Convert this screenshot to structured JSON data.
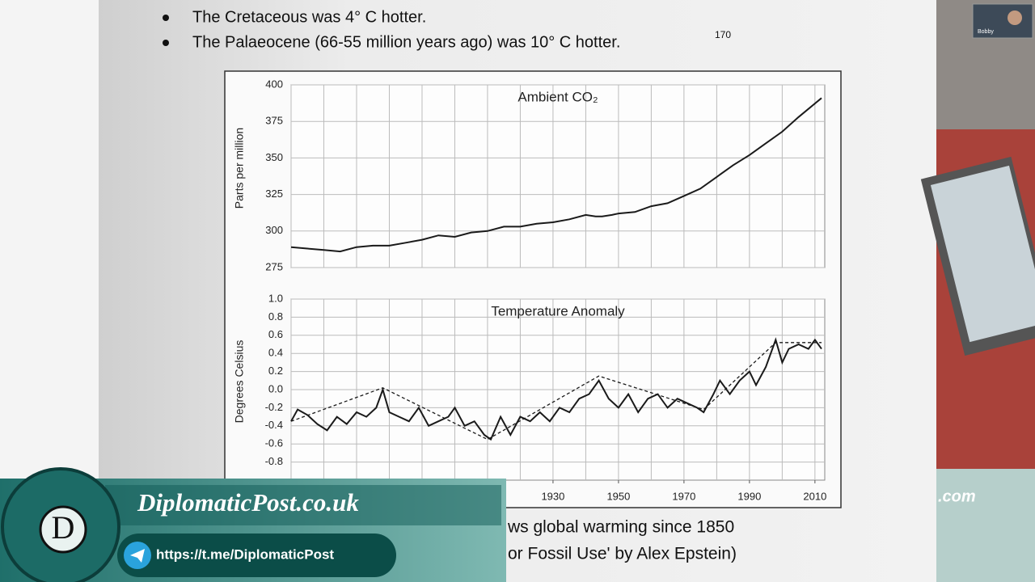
{
  "document": {
    "bullets": [
      "The Cretaceous was 4° C hotter.",
      "The Palaeocene (66-55 million years ago) was 10° C hotter."
    ],
    "footnote": "170",
    "caption": [
      "ws global warming since 1850",
      "or Fossil Use' by Alex Epstein)"
    ]
  },
  "chart_data": [
    {
      "type": "line",
      "title": "Ambient CO₂",
      "y_label": "Parts per million",
      "xlim": [
        1850,
        2013
      ],
      "ylim": [
        275,
        400
      ],
      "yticks": [
        275,
        300,
        325,
        350,
        375,
        400
      ],
      "grid": true,
      "series": [
        {
          "color": "#1a1a1a",
          "dash": false,
          "x": [
            1850,
            1855,
            1860,
            1865,
            1870,
            1875,
            1880,
            1885,
            1890,
            1895,
            1900,
            1905,
            1910,
            1915,
            1920,
            1925,
            1930,
            1935,
            1940,
            1943,
            1945,
            1948,
            1950,
            1955,
            1960,
            1965,
            1970,
            1975,
            1980,
            1985,
            1990,
            1995,
            2000,
            2005,
            2012
          ],
          "values": [
            289,
            288,
            287,
            286,
            289,
            290,
            290,
            292,
            294,
            297,
            296,
            299,
            300,
            303,
            303,
            305,
            306,
            308,
            311,
            310,
            310,
            311,
            312,
            313,
            317,
            319,
            324,
            329,
            337,
            345,
            352,
            360,
            368,
            378,
            391
          ]
        }
      ]
    },
    {
      "type": "line",
      "title": "Temperature Anomaly",
      "y_label": "Degrees Celsius",
      "xlim": [
        1850,
        2013
      ],
      "ylim": [
        -1.0,
        1.0
      ],
      "yticks": [
        -0.8,
        -0.6,
        -0.4,
        -0.2,
        {
          "value": 0,
          "label": "0.0"
        },
        0.2,
        0.4,
        0.6,
        0.8,
        {
          "value": 1,
          "label": "1.0"
        }
      ],
      "xticks": [
        1930,
        1950,
        1970,
        1990,
        2010
      ],
      "grid": true,
      "series": [
        {
          "color": "#1a1a1a",
          "dash": false,
          "x": [
            1850,
            1852,
            1855,
            1858,
            1861,
            1864,
            1867,
            1870,
            1873,
            1876,
            1878,
            1880,
            1883,
            1886,
            1889,
            1892,
            1895,
            1898,
            1900,
            1903,
            1906,
            1909,
            1911,
            1914,
            1917,
            1920,
            1923,
            1926,
            1929,
            1932,
            1935,
            1938,
            1941,
            1944,
            1947,
            1950,
            1953,
            1956,
            1959,
            1962,
            1965,
            1968,
            1971,
            1974,
            1976,
            1979,
            1981,
            1984,
            1987,
            1990,
            1992,
            1995,
            1998,
            2000,
            2002,
            2005,
            2008,
            2010,
            2012
          ],
          "values": [
            -0.35,
            -0.22,
            -0.28,
            -0.38,
            -0.45,
            -0.3,
            -0.38,
            -0.25,
            -0.3,
            -0.2,
            0.0,
            -0.25,
            -0.3,
            -0.35,
            -0.2,
            -0.4,
            -0.35,
            -0.3,
            -0.2,
            -0.4,
            -0.35,
            -0.5,
            -0.55,
            -0.3,
            -0.5,
            -0.3,
            -0.35,
            -0.25,
            -0.35,
            -0.2,
            -0.25,
            -0.1,
            -0.05,
            0.1,
            -0.1,
            -0.2,
            -0.05,
            -0.25,
            -0.1,
            -0.05,
            -0.2,
            -0.1,
            -0.15,
            -0.2,
            -0.25,
            -0.05,
            0.1,
            -0.05,
            0.1,
            0.2,
            0.05,
            0.25,
            0.55,
            0.3,
            0.45,
            0.5,
            0.45,
            0.55,
            0.45
          ]
        },
        {
          "color": "#1a1a1a",
          "dash": true,
          "x": [
            1850,
            1878,
            1910,
            1944,
            1976,
            1998,
            2012
          ],
          "values": [
            -0.35,
            0.02,
            -0.55,
            0.15,
            -0.22,
            0.52,
            0.52
          ]
        }
      ]
    }
  ],
  "overlay": {
    "site": "DiplomaticPost.co.uk",
    "link": "https://t.me/DiplomaticPost",
    "logo_letter": "D",
    "site_fragment": ".com",
    "webcam_name": "Bobby"
  }
}
